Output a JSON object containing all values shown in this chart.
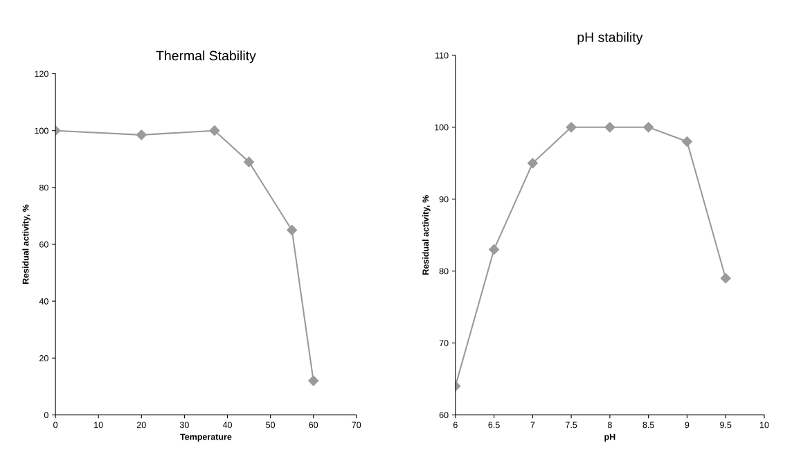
{
  "chart_data": [
    {
      "type": "line",
      "title": "Thermal Stability",
      "xlabel": "Temperature",
      "ylabel": "Residual activity, %",
      "marker": "diamond",
      "line_style": "solid",
      "grid": false,
      "legend": false,
      "xlim": [
        0,
        70
      ],
      "xticks": [
        0,
        10,
        20,
        30,
        40,
        50,
        60,
        70
      ],
      "ylim": [
        0,
        120
      ],
      "yticks": [
        0,
        20,
        40,
        60,
        80,
        100,
        120
      ],
      "series": [
        {
          "color": "#9a9a9a",
          "x": [
            0,
            20,
            37,
            45,
            55,
            60
          ],
          "values": [
            100,
            98.5,
            100,
            89,
            65,
            12
          ]
        }
      ]
    },
    {
      "type": "line",
      "title": "pH stability",
      "xlabel": "pH",
      "ylabel": "Residual activity, %",
      "marker": "diamond",
      "line_style": "solid",
      "grid": false,
      "legend": false,
      "xlim": [
        6,
        10
      ],
      "xticks": [
        6,
        6.5,
        7,
        7.5,
        8,
        8.5,
        9,
        9.5,
        10
      ],
      "ylim": [
        60,
        110
      ],
      "yticks": [
        60,
        70,
        80,
        90,
        100,
        110
      ],
      "series": [
        {
          "color": "#9a9a9a",
          "x": [
            6,
            6.5,
            7,
            7.5,
            8,
            8.5,
            9,
            9.5
          ],
          "values": [
            64,
            83,
            95,
            100,
            100,
            100,
            98,
            79
          ]
        }
      ]
    }
  ]
}
